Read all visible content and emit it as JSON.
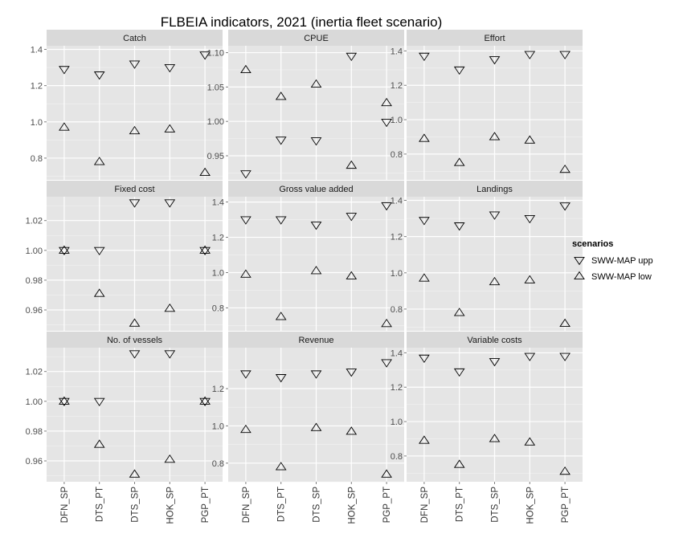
{
  "chart_data": {
    "type": "scatter",
    "title": "FLBEIA indicators, 2021 (inertia fleet scenario)",
    "categories": [
      "DFN_SP",
      "DTS_PT",
      "DTS_SP",
      "HOK_SP",
      "PGP_PT"
    ],
    "legend": {
      "title": "scenarios",
      "position": "right",
      "entries": [
        {
          "name": "SWW-MAP upp",
          "marker": "triangle-down"
        },
        {
          "name": "SWW-MAP low",
          "marker": "triangle-up"
        }
      ]
    },
    "grid": true,
    "facets": [
      {
        "label": "Catch",
        "ylim": [
          0.68,
          1.42
        ],
        "yticks": [
          0.8,
          1.0,
          1.2,
          1.4
        ],
        "series": [
          {
            "name": "SWW-MAP upp",
            "values": [
              1.29,
              1.26,
              1.32,
              1.3,
              1.37
            ]
          },
          {
            "name": "SWW-MAP low",
            "values": [
              0.97,
              0.78,
              0.95,
              0.96,
              0.72
            ]
          }
        ]
      },
      {
        "label": "CPUE",
        "ylim": [
          0.915,
          1.11
        ],
        "yticks": [
          0.95,
          1.0,
          1.05,
          1.1
        ],
        "series": [
          {
            "name": "SWW-MAP upp",
            "values": [
              0.924,
              0.973,
              0.972,
              1.095,
              0.999
            ]
          },
          {
            "name": "SWW-MAP low",
            "values": [
              1.075,
              1.036,
              1.054,
              0.936,
              1.027
            ]
          }
        ]
      },
      {
        "label": "Effort",
        "ylim": [
          0.65,
          1.43
        ],
        "yticks": [
          0.8,
          1.0,
          1.2,
          1.4
        ],
        "series": [
          {
            "name": "SWW-MAP upp",
            "values": [
              1.37,
              1.29,
              1.35,
              1.38,
              1.38
            ]
          },
          {
            "name": "SWW-MAP low",
            "values": [
              0.89,
              0.75,
              0.9,
              0.88,
              0.71
            ]
          }
        ]
      },
      {
        "label": "Fixed cost",
        "ylim": [
          0.946,
          1.036
        ],
        "yticks": [
          0.96,
          0.98,
          1.0,
          1.02
        ],
        "series": [
          {
            "name": "SWW-MAP upp",
            "values": [
              1.0,
              1.0,
              1.032,
              1.032,
              1.0
            ]
          },
          {
            "name": "SWW-MAP low",
            "values": [
              1.0,
              0.971,
              0.951,
              0.961,
              1.0
            ]
          }
        ]
      },
      {
        "label": "Gross value added",
        "ylim": [
          0.67,
          1.43
        ],
        "yticks": [
          0.8,
          1.0,
          1.2,
          1.4
        ],
        "series": [
          {
            "name": "SWW-MAP upp",
            "values": [
              1.3,
              1.3,
              1.27,
              1.32,
              1.38
            ]
          },
          {
            "name": "SWW-MAP low",
            "values": [
              0.99,
              0.75,
              1.01,
              0.98,
              0.71
            ]
          }
        ]
      },
      {
        "label": "Landings",
        "ylim": [
          0.68,
          1.42
        ],
        "yticks": [
          0.8,
          1.0,
          1.2,
          1.4
        ],
        "series": [
          {
            "name": "SWW-MAP upp",
            "values": [
              1.29,
              1.26,
              1.32,
              1.3,
              1.37
            ]
          },
          {
            "name": "SWW-MAP low",
            "values": [
              0.97,
              0.78,
              0.95,
              0.96,
              0.72
            ]
          }
        ]
      },
      {
        "label": "No. of vessels",
        "ylim": [
          0.946,
          1.036
        ],
        "yticks": [
          0.96,
          0.98,
          1.0,
          1.02
        ],
        "series": [
          {
            "name": "SWW-MAP upp",
            "values": [
              1.0,
              1.0,
              1.032,
              1.032,
              1.0
            ]
          },
          {
            "name": "SWW-MAP low",
            "values": [
              1.0,
              0.971,
              0.951,
              0.961,
              1.0
            ]
          }
        ]
      },
      {
        "label": "Revenue",
        "ylim": [
          0.7,
          1.42
        ],
        "yticks": [
          0.8,
          1.0,
          1.2
        ],
        "series": [
          {
            "name": "SWW-MAP upp",
            "values": [
              1.28,
              1.26,
              1.28,
              1.29,
              1.34
            ]
          },
          {
            "name": "SWW-MAP low",
            "values": [
              0.98,
              0.78,
              0.99,
              0.97,
              0.74
            ]
          }
        ]
      },
      {
        "label": "Variable costs",
        "ylim": [
          0.65,
          1.43
        ],
        "yticks": [
          0.8,
          1.0,
          1.2,
          1.4
        ],
        "series": [
          {
            "name": "SWW-MAP upp",
            "values": [
              1.37,
              1.29,
              1.35,
              1.38,
              1.38
            ]
          },
          {
            "name": "SWW-MAP low",
            "values": [
              0.89,
              0.75,
              0.9,
              0.88,
              0.71
            ]
          }
        ]
      }
    ]
  }
}
